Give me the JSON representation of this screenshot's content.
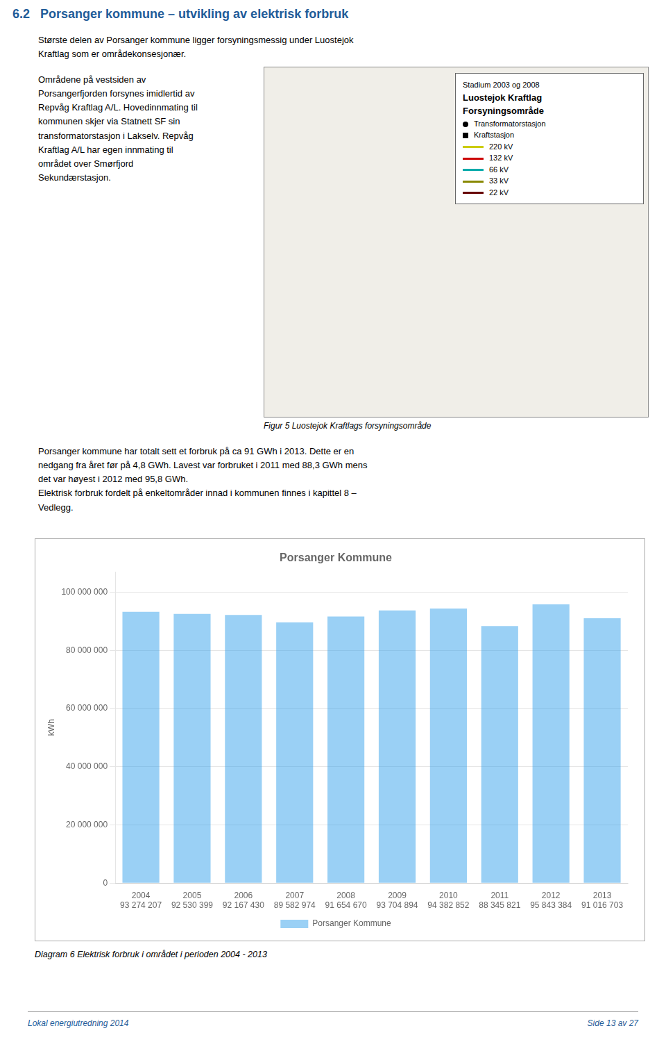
{
  "chart_data": {
    "type": "bar",
    "title": "Porsanger Kommune",
    "ylabel": "kWh",
    "categories": [
      "2004",
      "2005",
      "2006",
      "2007",
      "2008",
      "2009",
      "2010",
      "2011",
      "2012",
      "2013"
    ],
    "series": [
      {
        "name": "Porsanger Kommune",
        "values": [
          93274207,
          92530399,
          92167430,
          89582974,
          91654670,
          93704894,
          94382852,
          88345821,
          95843384,
          91016703
        ],
        "value_labels": [
          "93 274 207",
          "92 530 399",
          "92 167 430",
          "89 582 974",
          "91 654 670",
          "93 704 894",
          "94 382 852",
          "88 345 821",
          "95 843 384",
          "91 016 703"
        ]
      }
    ],
    "data_labels": true,
    "ylim": [
      0,
      107000000
    ],
    "yticks": [
      0,
      {
        "value": 20000000,
        "label": "20 000 000"
      },
      {
        "value": 40000000,
        "label": "40 000 000"
      },
      {
        "value": 60000000,
        "label": "60 000 000"
      },
      {
        "value": 80000000,
        "label": "80 000 000"
      },
      {
        "value": 100000000,
        "label": "100 000 000"
      }
    ],
    "grid": true,
    "legend": "bottom",
    "annotations": [
      "6.2   Porsanger kommune – utvikling av elektrisk forbruk",
      "Største delen av Porsanger kommune ligger forsyningsmessig under Luostejok\nKraftlag som er områdekonsesjonær.",
      "Områdene på vestsiden av\nPorsangerfjorden forsynes imidlertid av\nRepvåg Kraftlag A/L. Hovedinnmating til\nkommunen skjer via Statnett SF sin\ntransformatorstasjon i Lakselv. Repvåg\nKraftlag A/L har egen innmating til\nområdet over Smørfjord\nSekundærstasjon.",
      "Stadium 2003 og 2008",
      "Luostejok Kraftlag",
      "Forsyningsområde",
      "Transformatorstasjon",
      "Kraftstasjon",
      "220 kV",
      "132 kV",
      "66 kV",
      "33 kV",
      "22 kV",
      "Figur 5 Luostejok Kraftlags forsyningsområde",
      "Porsanger kommune har totalt sett et forbruk på ca 91 GWh i 2013. Dette er en\nnedgang fra året før på 4,8 GWh. Lavest var forbruket i 2011 med 88,3 GWh mens\ndet var høyest i 2012 med 95,8 GWh.\nElektrisk forbruk fordelt på enkeltområder innad i kommunen finnes i kapittel 8 –\nVedlegg.",
      "Diagram 6 Elektrisk forbruk i området i perioden 2004 - 2013",
      "Lokal energiutredning 2014",
      "Side 13 av 27"
    ]
  }
}
